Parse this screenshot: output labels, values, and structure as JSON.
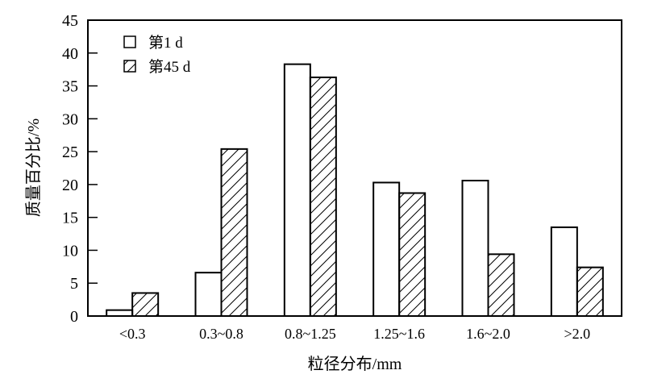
{
  "chart_data": {
    "type": "bar",
    "title": "",
    "xlabel": "粒径分布/mm",
    "ylabel": "质量百分比/%",
    "ylim": [
      0,
      45
    ],
    "yticks": [
      0,
      5,
      10,
      15,
      20,
      25,
      30,
      35,
      40,
      45
    ],
    "grid": false,
    "legend_placement": "top-left",
    "categories": [
      "<0.3",
      "0.3~0.8",
      "0.8~1.25",
      "1.25~1.6",
      "1.6~2.0",
      ">2.0"
    ],
    "series": [
      {
        "name": "第1 d",
        "fill": "open",
        "values": [
          0.9,
          6.6,
          38.3,
          20.3,
          20.6,
          13.5
        ]
      },
      {
        "name": "第45 d",
        "fill": "hatched",
        "values": [
          3.5,
          25.4,
          36.3,
          18.7,
          9.4,
          7.4
        ]
      }
    ],
    "colors": {
      "stroke": "#000000",
      "background": "#ffffff"
    }
  }
}
